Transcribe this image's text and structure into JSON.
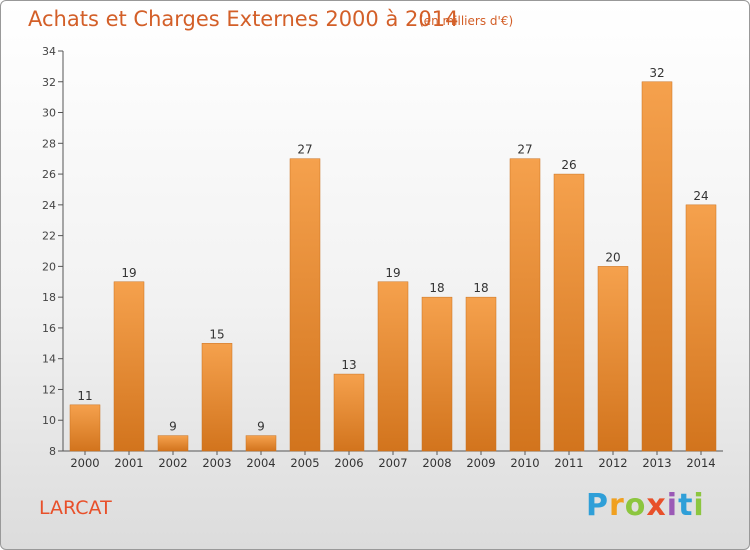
{
  "header": {
    "title": "Achats et Charges Externes 2000 à 2014",
    "unit": "(en milliers d'€)"
  },
  "footer": {
    "commune": "LARCAT",
    "logo": "Proxiti"
  },
  "logo_colors": [
    "#2f9fd8",
    "#f0a020",
    "#8cc63f",
    "#e8502a",
    "#9b59b6",
    "#2f9fd8",
    "#8cc63f"
  ],
  "colors": {
    "bar_light": "#f5a14d",
    "bar_dark": "#d2741d",
    "title": "#d35f28",
    "commune": "#e8502a"
  },
  "chart_data": {
    "type": "bar",
    "title": "Achats et Charges Externes 2000 à 2014",
    "subtitle": "(en milliers d'€)",
    "categories": [
      "2000",
      "2001",
      "2002",
      "2003",
      "2004",
      "2005",
      "2006",
      "2007",
      "2008",
      "2009",
      "2010",
      "2011",
      "2012",
      "2013",
      "2014"
    ],
    "values": [
      11,
      19,
      9,
      15,
      9,
      27,
      13,
      19,
      18,
      18,
      27,
      26,
      20,
      32,
      24
    ],
    "ylim": [
      8,
      34
    ],
    "yticks": [
      8,
      10,
      12,
      14,
      16,
      18,
      20,
      22,
      24,
      26,
      28,
      30,
      32,
      34
    ],
    "grid": false,
    "data_labels": true
  }
}
